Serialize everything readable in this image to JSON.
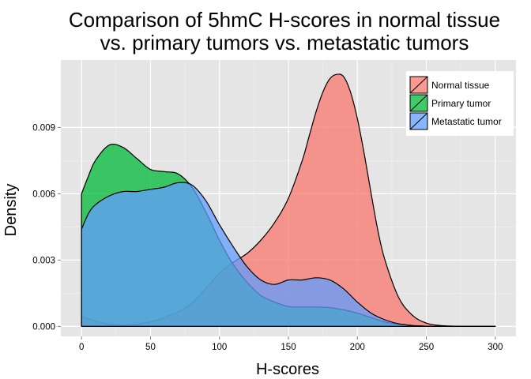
{
  "chart_data": {
    "type": "area",
    "title_line1": "Comparison of 5hmC H-scores in normal tissue",
    "title_line2": "vs. primary tumors vs. metastatic tumors",
    "xlabel": "H-scores",
    "ylabel": "Density",
    "xlim": [
      -15,
      315
    ],
    "ylim": [
      -0.00045,
      0.01205
    ],
    "x_ticks": [
      0,
      50,
      100,
      150,
      200,
      250,
      300
    ],
    "x_tick_labels": [
      "0",
      "50",
      "100",
      "150",
      "200",
      "250",
      "300"
    ],
    "y_ticks": [
      0.0,
      0.003,
      0.006,
      0.009
    ],
    "y_tick_labels": [
      "0.000",
      "0.003",
      "0.006",
      "0.009"
    ],
    "grid": true,
    "background": "#e5e5e5",
    "grid_color": "#ffffff",
    "legend_position": "top-right",
    "legend_labels": [
      "Normal tissue",
      "Primary tumor",
      "Metastatic tumor"
    ],
    "series": [
      {
        "name": "Normal tissue",
        "color": "#f8766d",
        "x": [
          0,
          10,
          20,
          30,
          40,
          50,
          60,
          70,
          80,
          90,
          100,
          110,
          120,
          130,
          140,
          150,
          160,
          165,
          170,
          175,
          180,
          185,
          190,
          195,
          200,
          205,
          210,
          215,
          220,
          230,
          240,
          250,
          260,
          270,
          280,
          290,
          300
        ],
        "y": [
          0.00045,
          0.00025,
          0.0001,
          5e-05,
          0.0001,
          0.0002,
          0.0004,
          0.00065,
          0.00105,
          0.0017,
          0.0024,
          0.0029,
          0.0033,
          0.0039,
          0.0047,
          0.0058,
          0.0075,
          0.0086,
          0.0097,
          0.0106,
          0.0112,
          0.0114,
          0.0113,
          0.0106,
          0.0094,
          0.0078,
          0.006,
          0.0043,
          0.003,
          0.0013,
          0.0005,
          0.00015,
          4e-05,
          1e-05,
          0.0,
          0.0,
          0.0
        ]
      },
      {
        "name": "Primary tumor",
        "color": "#00ba38",
        "x": [
          0,
          5,
          10,
          20,
          30,
          40,
          50,
          60,
          70,
          80,
          90,
          100,
          110,
          120,
          130,
          140,
          150,
          160,
          170,
          180,
          190,
          200,
          210,
          220,
          230,
          240,
          250,
          260,
          280,
          300
        ],
        "y": [
          0.006,
          0.0068,
          0.0075,
          0.0082,
          0.0081,
          0.0076,
          0.0071,
          0.007,
          0.0069,
          0.0063,
          0.0052,
          0.0039,
          0.0028,
          0.002,
          0.0014,
          0.0011,
          0.0009,
          0.00088,
          0.00088,
          0.00085,
          0.00075,
          0.0006,
          0.0004,
          0.0002,
          0.0001,
          3e-05,
          1e-05,
          0.0,
          0.0,
          0.0
        ]
      },
      {
        "name": "Metastatic tumor",
        "color": "#619cff",
        "x": [
          0,
          5,
          10,
          20,
          30,
          40,
          50,
          60,
          70,
          80,
          90,
          100,
          110,
          120,
          130,
          140,
          150,
          160,
          170,
          180,
          190,
          200,
          210,
          220,
          230,
          240,
          250,
          260,
          280,
          300
        ],
        "y": [
          0.0044,
          0.0051,
          0.0055,
          0.0059,
          0.0061,
          0.0061,
          0.0062,
          0.0063,
          0.0065,
          0.0064,
          0.0057,
          0.0046,
          0.0036,
          0.0027,
          0.0021,
          0.0019,
          0.0021,
          0.0021,
          0.0022,
          0.0021,
          0.0017,
          0.0011,
          0.0006,
          0.0003,
          0.00012,
          4e-05,
          1e-05,
          0.0,
          0.0,
          0.0
        ]
      }
    ]
  }
}
